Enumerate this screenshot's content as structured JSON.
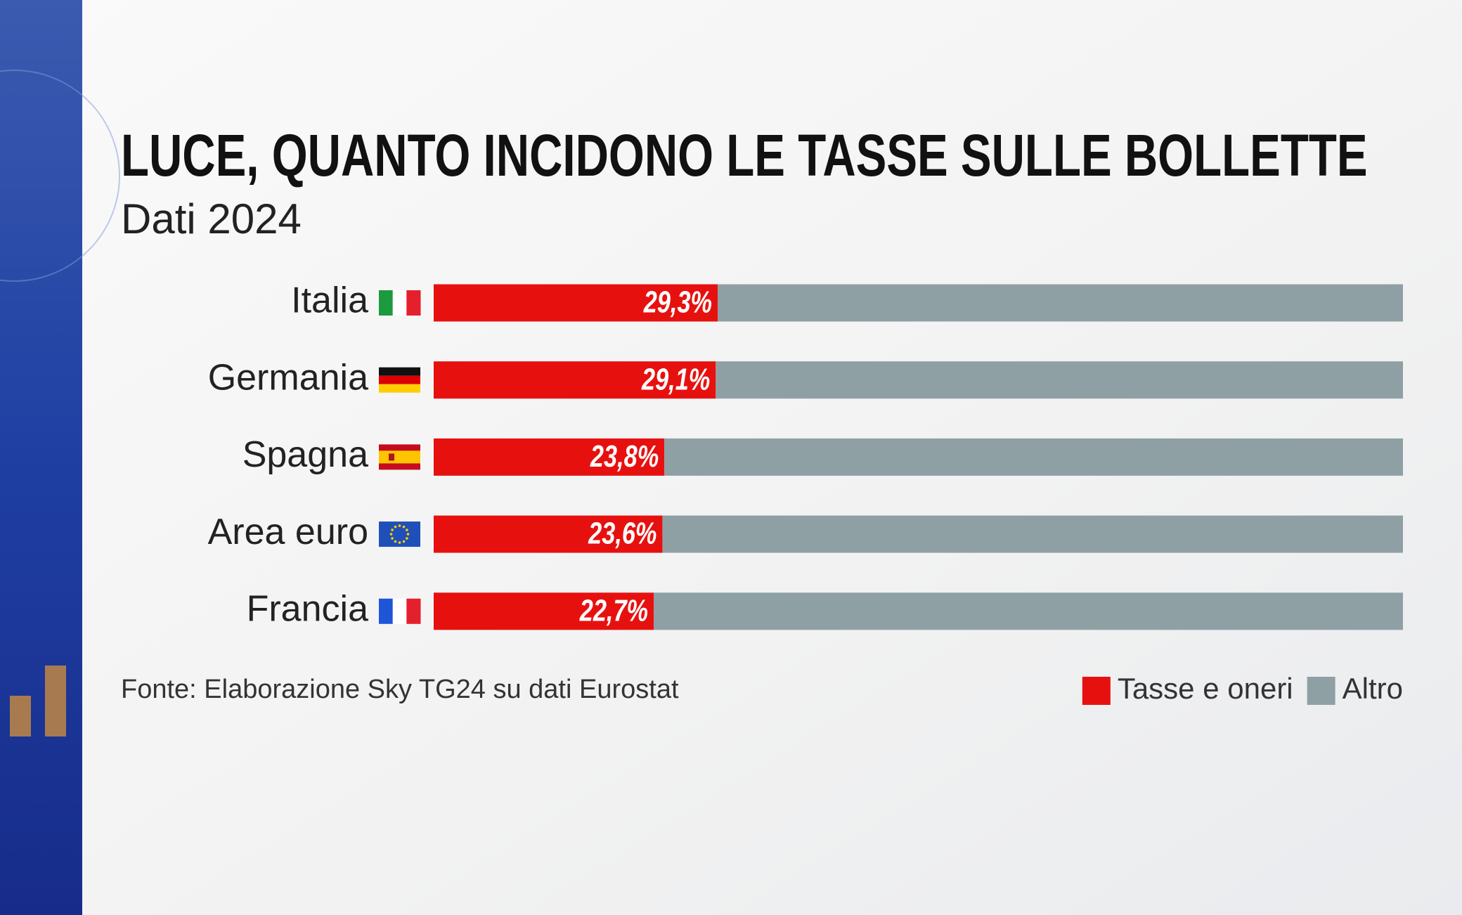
{
  "chart_data": {
    "type": "stacked-barh",
    "title": "LUCE, QUANTO INCIDONO LE TASSE SULLE BOLLETTE",
    "subtitle": "Dati 2024",
    "categories": [
      "Italia",
      "Germania",
      "Spagna",
      "Area euro",
      "Francia"
    ],
    "series": [
      {
        "name": "Tasse e oneri",
        "color": "#e6110f",
        "values": [
          29.3,
          29.1,
          23.8,
          23.6,
          22.7
        ],
        "value_labels": [
          "29,3%",
          "29,1%",
          "23,8%",
          "23,6%",
          "22,7%"
        ]
      },
      {
        "name": "Altro",
        "color": "#8fa0a5",
        "values": [
          70.7,
          70.9,
          76.2,
          76.4,
          77.3
        ]
      }
    ],
    "xlim": [
      0,
      100
    ],
    "source": "Fonte: Elaborazione Sky TG24 su dati Eurostat"
  }
}
